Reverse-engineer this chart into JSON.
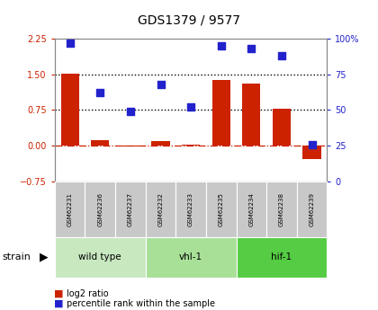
{
  "title": "GDS1379 / 9577",
  "samples": [
    "GSM62231",
    "GSM62236",
    "GSM62237",
    "GSM62232",
    "GSM62233",
    "GSM62235",
    "GSM62234",
    "GSM62238",
    "GSM62239"
  ],
  "log2_ratio": [
    1.52,
    0.12,
    -0.02,
    0.1,
    0.03,
    1.38,
    1.3,
    0.78,
    -0.28
  ],
  "pct_rank": [
    97,
    62,
    49,
    68,
    52,
    95,
    93,
    88,
    26
  ],
  "bar_color": "#cc2200",
  "dot_color": "#2222cc",
  "ylim_left": [
    -0.75,
    2.25
  ],
  "ylim_right": [
    0,
    100
  ],
  "yticks_left": [
    -0.75,
    0,
    0.75,
    1.5,
    2.25
  ],
  "yticks_right": [
    0,
    25,
    50,
    75,
    100
  ],
  "hline1": 1.5,
  "hline2": 0.75,
  "hline0": 0.0,
  "groups": [
    {
      "label": "wild type",
      "start": 0,
      "end": 3,
      "color": "#c8e8c0"
    },
    {
      "label": "vhl-1",
      "start": 3,
      "end": 6,
      "color": "#a8e098"
    },
    {
      "label": "hif-1",
      "start": 6,
      "end": 9,
      "color": "#55cc44"
    }
  ],
  "strain_label": "strain",
  "legend_bar_label": "log2 ratio",
  "legend_dot_label": "percentile rank within the sample",
  "left_label_color": "#cc2200",
  "right_label_color": "#2222cc",
  "dot_size": 28,
  "bar_width": 0.6,
  "sample_box_color": "#c8c8c8",
  "tick_fontsize": 7,
  "label_fontsize": 6
}
